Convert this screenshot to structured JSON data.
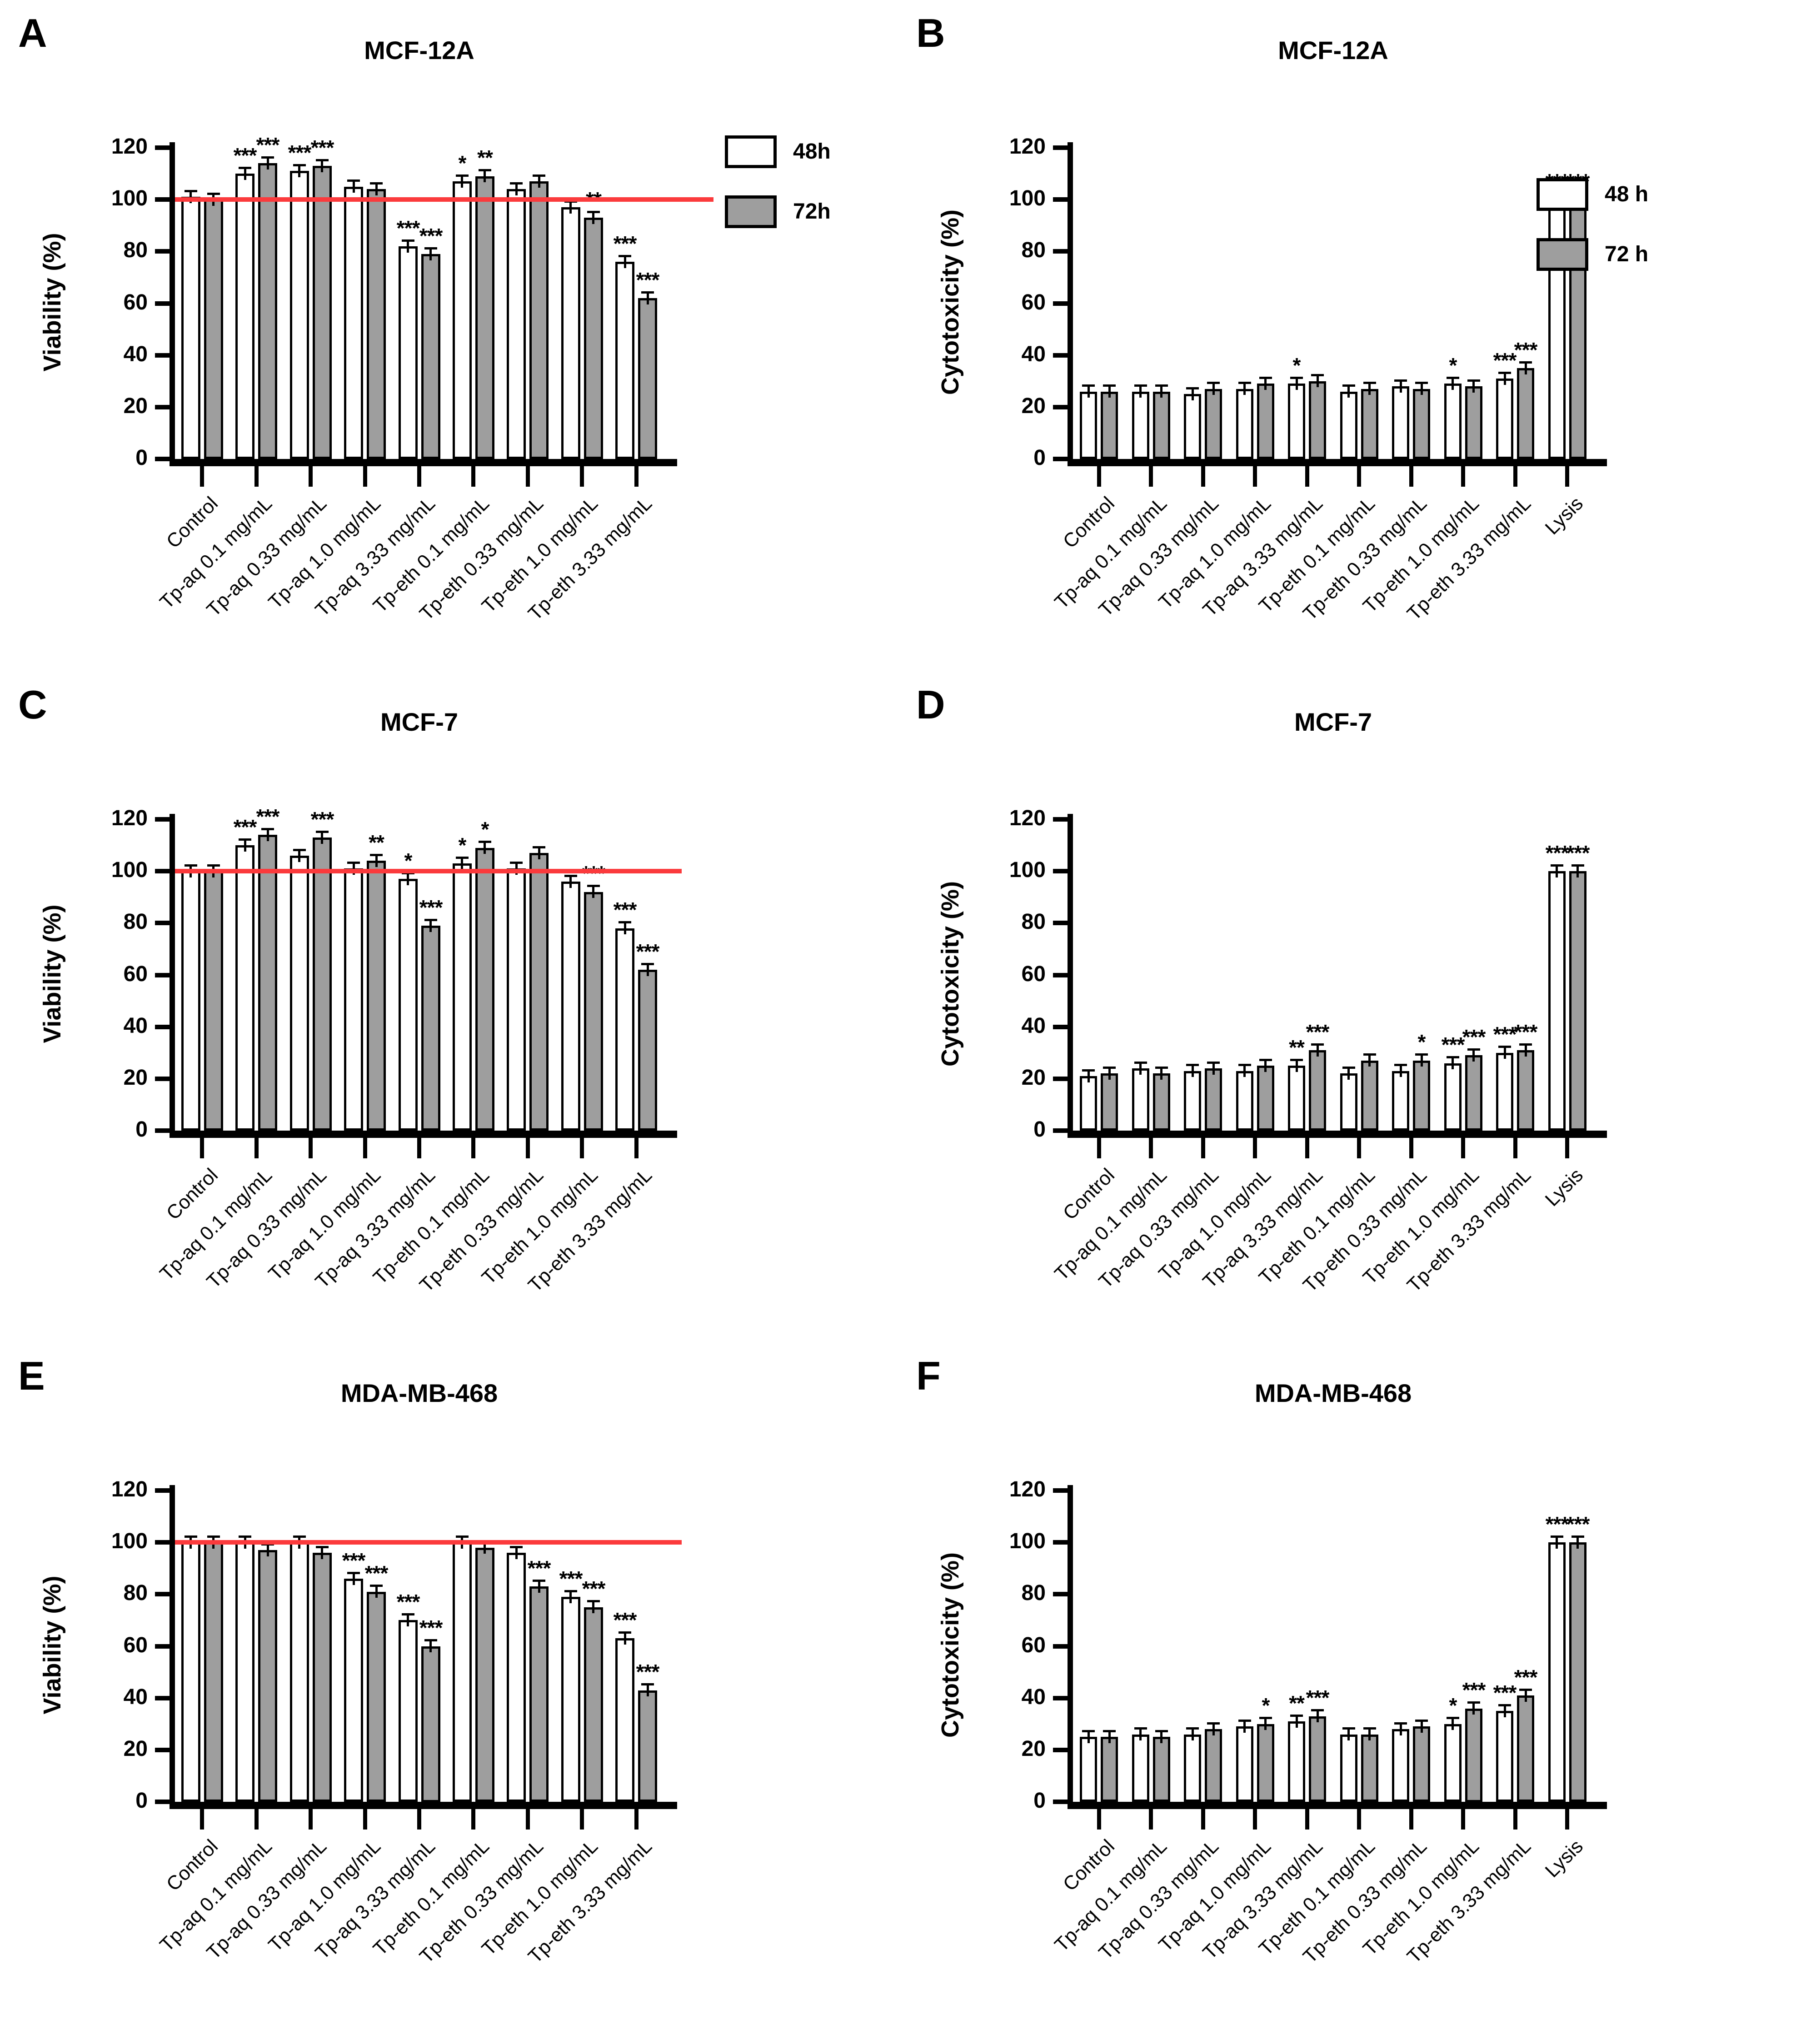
{
  "figure": {
    "background": "#ffffff",
    "accent_red": "#fb3a3c",
    "bar_fill_48h": "#ffffff",
    "bar_fill_72h": "#9e9e9e",
    "outline_color": "#000000"
  },
  "chart_data": [
    {
      "panel": "A",
      "title": "MCF-12A",
      "type": "bar",
      "ylabel": "Viability (%)",
      "ylim": [
        0,
        120
      ],
      "yticks": [
        0,
        20,
        40,
        60,
        80,
        100,
        120
      ],
      "reference_line": 100,
      "grid": false,
      "legend": {
        "position": "right",
        "items": [
          {
            "label": "48h",
            "fill": "#ffffff"
          },
          {
            "label": "72h",
            "fill": "#9e9e9e"
          }
        ]
      },
      "categories": [
        "Control",
        "Tp-aq 0.1 mg/mL",
        "Tp-aq 0.33 mg/mL",
        "Tp-aq 1.0 mg/mL",
        "Tp-aq 3.33 mg/mL",
        "Tp-eth 0.1 mg/mL",
        "Tp-eth 0.33 mg/mL",
        "Tp-eth 1.0 mg/mL",
        "Tp-eth 3.33 mg/mL"
      ],
      "error_bar": 2,
      "series": [
        {
          "name": "48h",
          "fill": "#ffffff",
          "values": [
            101,
            110,
            111,
            105,
            82,
            107,
            104,
            97,
            76
          ],
          "stars": [
            "",
            "***",
            "***",
            "",
            "***",
            "*",
            "",
            "",
            "***"
          ]
        },
        {
          "name": "72h",
          "fill": "#9e9e9e",
          "values": [
            100,
            114,
            113,
            104,
            79,
            109,
            107,
            93,
            62
          ],
          "stars": [
            "",
            "***",
            "***",
            "",
            "***",
            "**",
            "",
            "**",
            "***"
          ]
        }
      ]
    },
    {
      "panel": "B",
      "title": "MCF-12A",
      "type": "bar",
      "ylabel": "Cytotoxicity (%)",
      "ylim": [
        0,
        120
      ],
      "yticks": [
        0,
        20,
        40,
        60,
        80,
        100,
        120
      ],
      "reference_line": null,
      "grid": false,
      "legend": {
        "position": "right",
        "items": [
          {
            "label": "48 h",
            "fill": "#ffffff"
          },
          {
            "label": "72 h",
            "fill": "#9e9e9e"
          }
        ]
      },
      "categories": [
        "Control",
        "Tp-aq 0.1 mg/mL",
        "Tp-aq 0.33 mg/mL",
        "Tp-aq 1.0 mg/mL",
        "Tp-aq 3.33 mg/mL",
        "Tp-eth 0.1 mg/mL",
        "Tp-eth 0.33 mg/mL",
        "Tp-eth 1.0 mg/mL",
        "Tp-eth 3.33 mg/mL",
        "Lysis"
      ],
      "error_bar": 2,
      "series": [
        {
          "name": "48h",
          "fill": "#ffffff",
          "values": [
            26,
            26,
            25,
            27,
            29,
            26,
            28,
            29,
            31,
            100
          ],
          "stars": [
            "",
            "",
            "",
            "",
            "*",
            "",
            "",
            "*",
            "***",
            "***"
          ]
        },
        {
          "name": "72h",
          "fill": "#9e9e9e",
          "values": [
            26,
            26,
            27,
            29,
            30,
            27,
            27,
            28,
            35,
            100
          ],
          "stars": [
            "",
            "",
            "",
            "",
            "",
            "",
            "",
            "",
            "***",
            "***"
          ]
        }
      ]
    },
    {
      "panel": "C",
      "title": "MCF-7",
      "type": "bar",
      "ylabel": "Viability (%)",
      "ylim": [
        0,
        120
      ],
      "yticks": [
        0,
        20,
        40,
        60,
        80,
        100,
        120
      ],
      "reference_line": 100,
      "grid": false,
      "legend": null,
      "categories": [
        "Control",
        "Tp-aq 0.1 mg/mL",
        "Tp-aq 0.33 mg/mL",
        "Tp-aq 1.0 mg/mL",
        "Tp-aq 3.33 mg/mL",
        "Tp-eth 0.1 mg/mL",
        "Tp-eth 0.33 mg/mL",
        "Tp-eth 1.0 mg/mL",
        "Tp-eth 3.33 mg/mL"
      ],
      "error_bar": 2,
      "series": [
        {
          "name": "48h",
          "fill": "#ffffff",
          "values": [
            100,
            110,
            106,
            101,
            97,
            103,
            101,
            96,
            78
          ],
          "stars": [
            "",
            "***",
            "",
            "",
            "*",
            "*",
            "",
            "",
            "***"
          ]
        },
        {
          "name": "72h",
          "fill": "#9e9e9e",
          "values": [
            100,
            114,
            113,
            104,
            79,
            109,
            107,
            92,
            62
          ],
          "stars": [
            "",
            "***",
            "***",
            "**",
            "***",
            "*",
            "",
            "***",
            "***"
          ]
        }
      ]
    },
    {
      "panel": "D",
      "title": "MCF-7",
      "type": "bar",
      "ylabel": "Cytotoxicity (%)",
      "ylim": [
        0,
        120
      ],
      "yticks": [
        0,
        20,
        40,
        60,
        80,
        100,
        120
      ],
      "reference_line": null,
      "grid": false,
      "legend": null,
      "categories": [
        "Control",
        "Tp-aq 0.1 mg/mL",
        "Tp-aq 0.33 mg/mL",
        "Tp-aq 1.0 mg/mL",
        "Tp-aq 3.33 mg/mL",
        "Tp-eth 0.1 mg/mL",
        "Tp-eth 0.33 mg/mL",
        "Tp-eth 1.0 mg/mL",
        "Tp-eth 3.33 mg/mL",
        "Lysis"
      ],
      "error_bar": 2,
      "series": [
        {
          "name": "48h",
          "fill": "#ffffff",
          "values": [
            21,
            24,
            23,
            23,
            25,
            22,
            23,
            26,
            30,
            100
          ],
          "stars": [
            "",
            "",
            "",
            "",
            "**",
            "",
            "",
            "***",
            "***",
            "***"
          ]
        },
        {
          "name": "72h",
          "fill": "#9e9e9e",
          "values": [
            22,
            22,
            24,
            25,
            31,
            27,
            27,
            29,
            31,
            100
          ],
          "stars": [
            "",
            "",
            "",
            "",
            "***",
            "",
            "*",
            "***",
            "***",
            "***"
          ]
        }
      ]
    },
    {
      "panel": "E",
      "title": "MDA-MB-468",
      "type": "bar",
      "ylabel": "Viability (%)",
      "ylim": [
        0,
        120
      ],
      "yticks": [
        0,
        20,
        40,
        60,
        80,
        100,
        120
      ],
      "reference_line": 100,
      "grid": false,
      "legend": null,
      "categories": [
        "Control",
        "Tp-aq 0.1 mg/mL",
        "Tp-aq 0.33 mg/mL",
        "Tp-aq 1.0 mg/mL",
        "Tp-aq 3.33 mg/mL",
        "Tp-eth 0.1 mg/mL",
        "Tp-eth 0.33 mg/mL",
        "Tp-eth 1.0 mg/mL",
        "Tp-eth 3.33 mg/mL"
      ],
      "error_bar": 2,
      "series": [
        {
          "name": "48h",
          "fill": "#ffffff",
          "values": [
            100,
            100,
            100,
            86,
            70,
            100,
            96,
            79,
            63
          ],
          "stars": [
            "",
            "",
            "",
            "***",
            "***",
            "",
            "",
            "***",
            "***"
          ]
        },
        {
          "name": "72h",
          "fill": "#9e9e9e",
          "values": [
            100,
            97,
            96,
            81,
            60,
            98,
            83,
            75,
            43
          ],
          "stars": [
            "",
            "",
            "",
            "***",
            "***",
            "",
            "***",
            "***",
            "***"
          ]
        }
      ]
    },
    {
      "panel": "F",
      "title": "MDA-MB-468",
      "type": "bar",
      "ylabel": "Cytotoxicity (%)",
      "ylim": [
        0,
        120
      ],
      "yticks": [
        0,
        20,
        40,
        60,
        80,
        100,
        120
      ],
      "reference_line": null,
      "grid": false,
      "legend": null,
      "categories": [
        "Control",
        "Tp-aq 0.1 mg/mL",
        "Tp-aq 0.33 mg/mL",
        "Tp-aq 1.0 mg/mL",
        "Tp-aq 3.33 mg/mL",
        "Tp-eth 0.1 mg/mL",
        "Tp-eth 0.33 mg/mL",
        "Tp-eth 1.0 mg/mL",
        "Tp-eth 3.33 mg/mL",
        "Lysis"
      ],
      "error_bar": 2,
      "series": [
        {
          "name": "48h",
          "fill": "#ffffff",
          "values": [
            25,
            26,
            26,
            29,
            31,
            26,
            28,
            30,
            35,
            100
          ],
          "stars": [
            "",
            "",
            "",
            "",
            "**",
            "",
            "",
            "*",
            "***",
            "***"
          ]
        },
        {
          "name": "72h",
          "fill": "#9e9e9e",
          "values": [
            25,
            25,
            28,
            30,
            33,
            26,
            29,
            36,
            41,
            100
          ],
          "stars": [
            "",
            "",
            "",
            "*",
            "***",
            "",
            "",
            "***",
            "***",
            "***"
          ]
        }
      ]
    }
  ]
}
